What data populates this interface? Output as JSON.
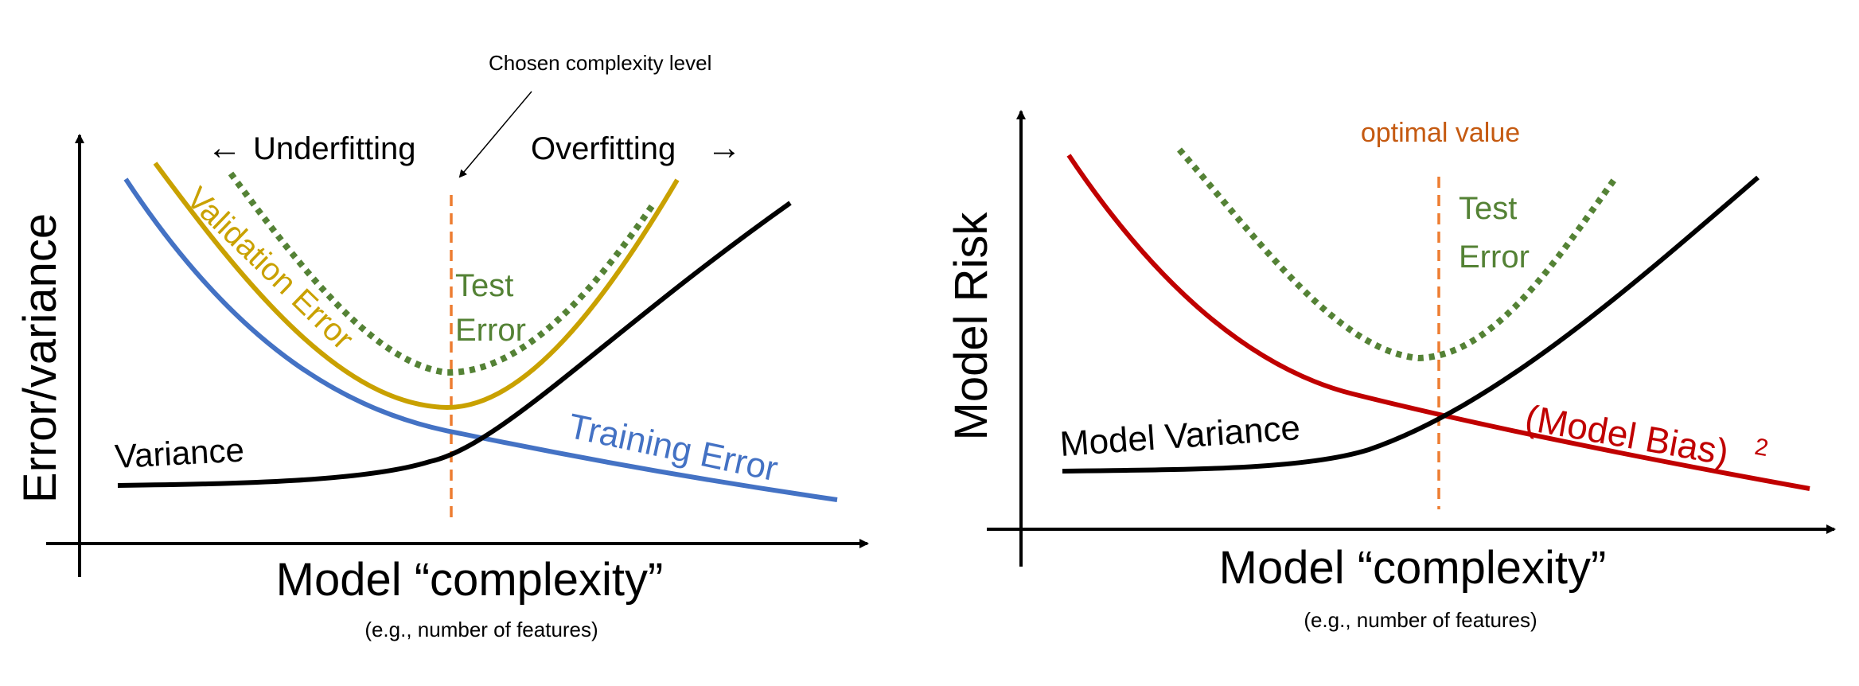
{
  "left_panel": {
    "annotation": "Chosen complexity level",
    "underfitting": "Underfitting",
    "overfitting": "Overfitting",
    "y_axis": "Error/variance",
    "x_axis": "Model “complexity”",
    "x_axis_note": "(e.g., number of features)",
    "curves": {
      "validation_label": "Validation Error",
      "test_label_line1": "Test",
      "test_label_line2": "Error",
      "training_label": "Training Error",
      "variance_label": "Variance"
    }
  },
  "right_panel": {
    "optimal_label": "optimal value",
    "y_axis": "Model Risk",
    "x_axis": "Model “complexity”",
    "x_axis_note": "(e.g., number of features)",
    "curves": {
      "test_label_line1": "Test",
      "test_label_line2": "Error",
      "variance_label": "Model Variance",
      "bias_label": "(Model Bias)",
      "bias_exponent": "2"
    }
  },
  "colors": {
    "validation": "#C9A100",
    "test": "#548235",
    "training": "#4472C4",
    "variance": "#000000",
    "bias": "#C00000",
    "optimal": "#ED7D31",
    "optimal_text": "#C55A11"
  }
}
